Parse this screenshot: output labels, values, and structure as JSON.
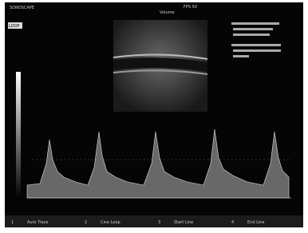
{
  "header": {
    "brand": "SONOSCAPE",
    "mode_tag": "LOOP",
    "fps": "FPS 50",
    "volume": "Volume"
  },
  "menu": [
    {
      "key": "1",
      "label": "Auto Trace"
    },
    {
      "key": "2",
      "label": "Cine Loop"
    },
    {
      "key": "3",
      "label": "Start Line"
    },
    {
      "key": "4",
      "label": "End Line"
    }
  ]
}
